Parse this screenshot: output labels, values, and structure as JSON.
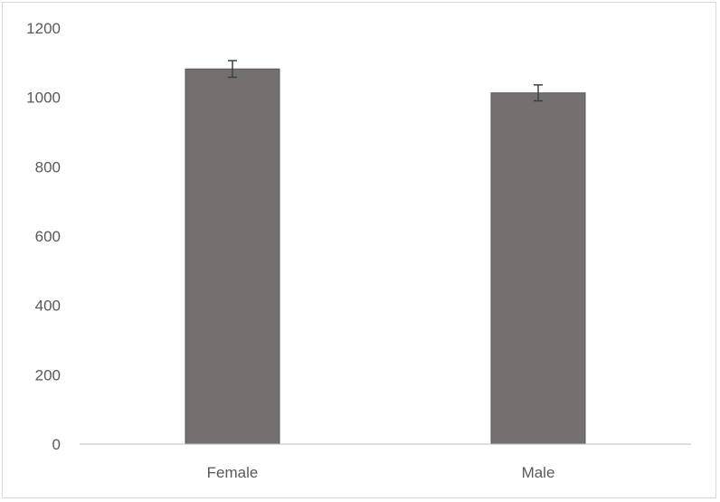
{
  "chart_data": {
    "type": "bar",
    "categories": [
      "Female",
      "Male"
    ],
    "series": [
      {
        "values": [
          1082,
          1013
        ],
        "error": [
          24,
          23
        ]
      }
    ],
    "ylim": [
      0,
      1200
    ],
    "yticks": [
      "0",
      "200",
      "400",
      "600",
      "800",
      "1000",
      "1200"
    ],
    "ticks": [
      0,
      200,
      400,
      600,
      800,
      1000,
      1200
    ],
    "grid": false,
    "legend": "none",
    "title": "",
    "xlabel": "",
    "ylabel": "",
    "colors": {
      "bar_fill": "#747070",
      "bar_stroke": "#5a5757",
      "axis": "#bfbfbf",
      "error_bar": "#404040"
    }
  }
}
